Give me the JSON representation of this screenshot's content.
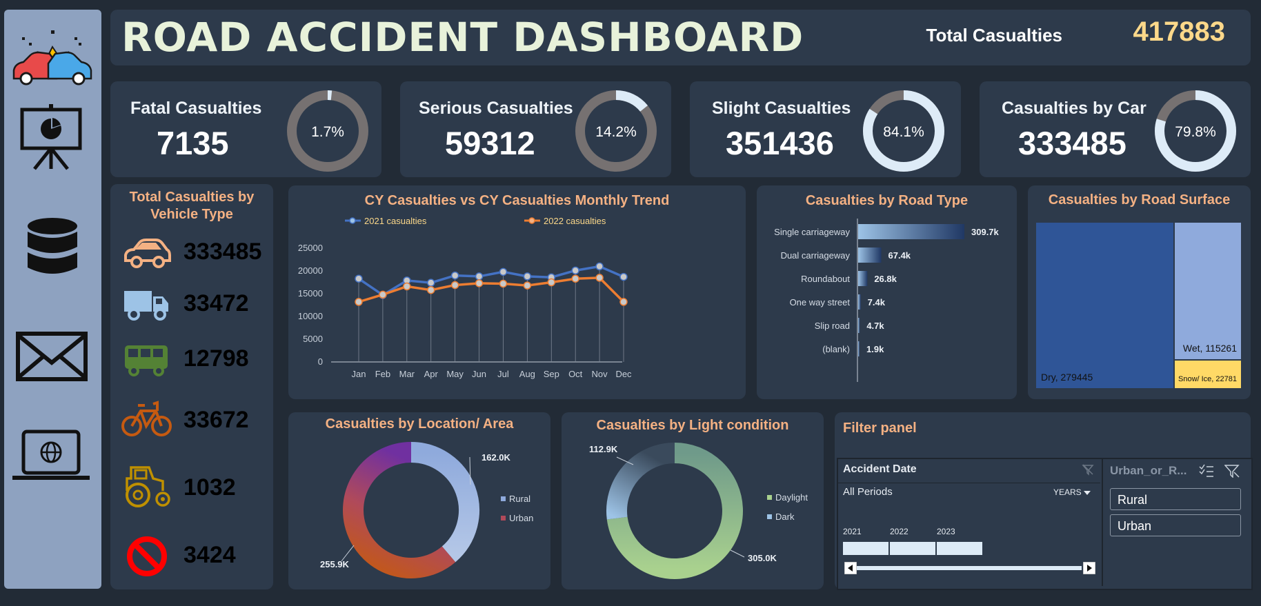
{
  "header": {
    "title": "ROAD ACCIDENT DASHBOARD",
    "total_label": "Total Casualties",
    "total_value": "417883"
  },
  "kpis": [
    {
      "label": "Fatal Casualties",
      "value": "7135",
      "pct_label": "1.7%",
      "pct": 1.7
    },
    {
      "label": "Serious Casualties",
      "value": "59312",
      "pct_label": "14.2%",
      "pct": 14.2
    },
    {
      "label": "Slight Casualties",
      "value": "351436",
      "pct_label": "84.1%",
      "pct": 84.1
    },
    {
      "label": "Casualties by Car",
      "value": "333485",
      "pct_label": "79.8%",
      "pct": 79.8
    }
  ],
  "vehicle": {
    "title": "Total Casualties by Vehicle Type",
    "items": [
      {
        "icon": "car-icon",
        "value": "333485",
        "color": "#f4b183"
      },
      {
        "icon": "truck-icon",
        "value": "33472",
        "color": "#9dc3e6"
      },
      {
        "icon": "bus-icon",
        "value": "12798",
        "color": "#548235"
      },
      {
        "icon": "bicycle-icon",
        "value": "33672",
        "color": "#c55a11"
      },
      {
        "icon": "tractor-icon",
        "value": "1032",
        "color": "#bf9000"
      },
      {
        "icon": "prohibited-icon",
        "value": "3424",
        "color": "#ff0000"
      }
    ]
  },
  "chart_data": [
    {
      "type": "line",
      "title": "CY Casualties vs CY  Casualties Monthly Trend",
      "categories": [
        "Jan",
        "Feb",
        "Mar",
        "Apr",
        "May",
        "Jun",
        "Jul",
        "Aug",
        "Sep",
        "Oct",
        "Nov",
        "Dec"
      ],
      "series": [
        {
          "name": "2021 casualties",
          "color": "#4472c4",
          "values": [
            18300,
            14700,
            17900,
            17400,
            19000,
            18800,
            19800,
            18800,
            18600,
            20100,
            21000,
            18700
          ]
        },
        {
          "name": "2022 casualties",
          "color": "#ed7d31",
          "values": [
            13200,
            14800,
            16600,
            15800,
            16900,
            17300,
            17200,
            16800,
            17500,
            18300,
            18500,
            13200
          ]
        }
      ],
      "yticks": [
        "0",
        "5000",
        "10000",
        "15000",
        "20000",
        "25000"
      ],
      "ylim": [
        0,
        25000
      ]
    },
    {
      "type": "bar",
      "orientation": "horizontal",
      "title": "Casualties by Road Type",
      "categories": [
        "Single carriageway",
        "Dual carriageway",
        "Roundabout",
        "One way street",
        "Slip road",
        "(blank)"
      ],
      "values": [
        309.7,
        67.4,
        26.8,
        7.4,
        4.7,
        1.9
      ],
      "labels": [
        "309.7k",
        "67.4k",
        "26.8k",
        "7.4k",
        "4.7k",
        "1.9k"
      ]
    },
    {
      "type": "treemap",
      "title": "Casualties by Road Surface",
      "items": [
        {
          "label": "Dry, 279445",
          "value": 279445,
          "color": "#2f5597"
        },
        {
          "label": "Wet, 115261",
          "value": 115261,
          "color": "#8faadc"
        },
        {
          "label": "Snow/ Ice, 22781",
          "value": 22781,
          "color": "#ffd966"
        }
      ]
    },
    {
      "type": "pie",
      "title": "Casualties by Location/ Area",
      "legend": [
        "Rural",
        "Urban"
      ],
      "values": [
        162.0,
        255.9
      ],
      "labels": [
        "162.0K",
        "255.9K"
      ]
    },
    {
      "type": "pie",
      "title": "Casualties by Light condition",
      "legend": [
        "Daylight",
        "Dark"
      ],
      "values": [
        305.0,
        112.9
      ],
      "labels": [
        "305.0K",
        "112.9K"
      ]
    }
  ],
  "filter": {
    "title": "Filter panel",
    "date": {
      "header": "Accident Date",
      "period": "All Periods",
      "granularity": "YEARS",
      "years": [
        "2021",
        "2022",
        "2023"
      ]
    },
    "area": {
      "header": "Urban_or_R...",
      "options": [
        "Rural",
        "Urban"
      ]
    }
  },
  "colors": {
    "panel": "#2d3a4b",
    "bg": "#222b36",
    "accent": "#f4b183"
  }
}
